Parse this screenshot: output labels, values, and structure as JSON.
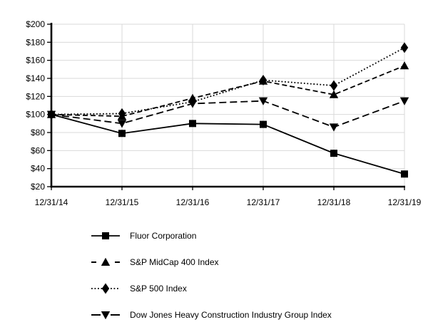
{
  "chart_data": {
    "type": "line",
    "title": "",
    "x": [
      "12/31/14",
      "12/31/15",
      "12/31/16",
      "12/31/17",
      "12/31/18",
      "12/31/19"
    ],
    "y_ticks": [
      "$200",
      "$180",
      "$160",
      "$140",
      "$120",
      "$100",
      "$80",
      "$60",
      "$40",
      "$20"
    ],
    "ylim": [
      20,
      200
    ],
    "y_step": 20,
    "grid": true,
    "legend_position": "bottom-left",
    "colors": {
      "series": "#000000",
      "grid": "#d9d9d9",
      "axis": "#000000",
      "text": "#000000",
      "background": "#ffffff"
    },
    "series": [
      {
        "name": "Fluor Corporation",
        "marker": "square",
        "line_style": "solid",
        "values": [
          100,
          79,
          90,
          89,
          57,
          34
        ]
      },
      {
        "name": "S&P MidCap 400 Index",
        "marker": "triangle-up",
        "line_style": "dashed",
        "values": [
          100,
          98,
          118,
          137,
          122,
          154
        ]
      },
      {
        "name": "S&P 500 Index",
        "marker": "diamond",
        "line_style": "dotted",
        "values": [
          100,
          101,
          114,
          138,
          132,
          174
        ]
      },
      {
        "name": "Dow Jones Heavy Construction Industry Group Index",
        "marker": "triangle-down",
        "line_style": "dashed-long",
        "values": [
          100,
          90,
          112,
          115,
          86,
          115
        ]
      }
    ]
  }
}
